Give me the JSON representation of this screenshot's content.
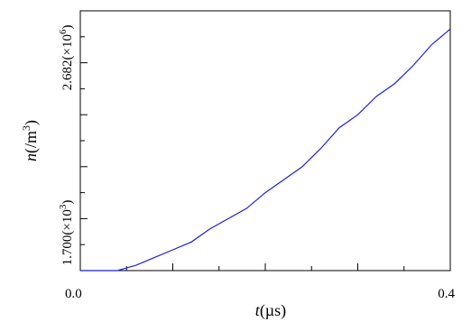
{
  "chart_data": {
    "type": "line",
    "title": "",
    "xlabel": {
      "var": "t",
      "unit": "(µs)"
    },
    "ylabel": {
      "var": "n",
      "unit_base": "(/m",
      "unit_exp": "3",
      "unit_end": ")"
    },
    "xlim": [
      0.0,
      0.4
    ],
    "x_ticks": [
      {
        "value": 0.0,
        "label": "0.0"
      },
      {
        "value": 0.4,
        "label": "0.4"
      }
    ],
    "y_ticks": [
      {
        "value": 0.0,
        "mantissa": "1.700",
        "exp": "3"
      },
      {
        "value": 0.82,
        "mantissa": "2.682",
        "exp": "6"
      }
    ],
    "grid": false,
    "legend": "none",
    "series": [
      {
        "color": "#1f1fd6",
        "x": [
          0.0,
          0.02,
          0.04,
          0.05,
          0.06,
          0.08,
          0.1,
          0.12,
          0.14,
          0.16,
          0.18,
          0.2,
          0.22,
          0.24,
          0.26,
          0.28,
          0.3,
          0.32,
          0.34,
          0.36,
          0.38,
          0.4
        ],
        "y": [
          0.0,
          0.0,
          0.0,
          0.01,
          0.02,
          0.05,
          0.08,
          0.11,
          0.16,
          0.2,
          0.24,
          0.3,
          0.35,
          0.4,
          0.47,
          0.55,
          0.6,
          0.67,
          0.72,
          0.79,
          0.87,
          0.93
        ]
      }
    ]
  }
}
